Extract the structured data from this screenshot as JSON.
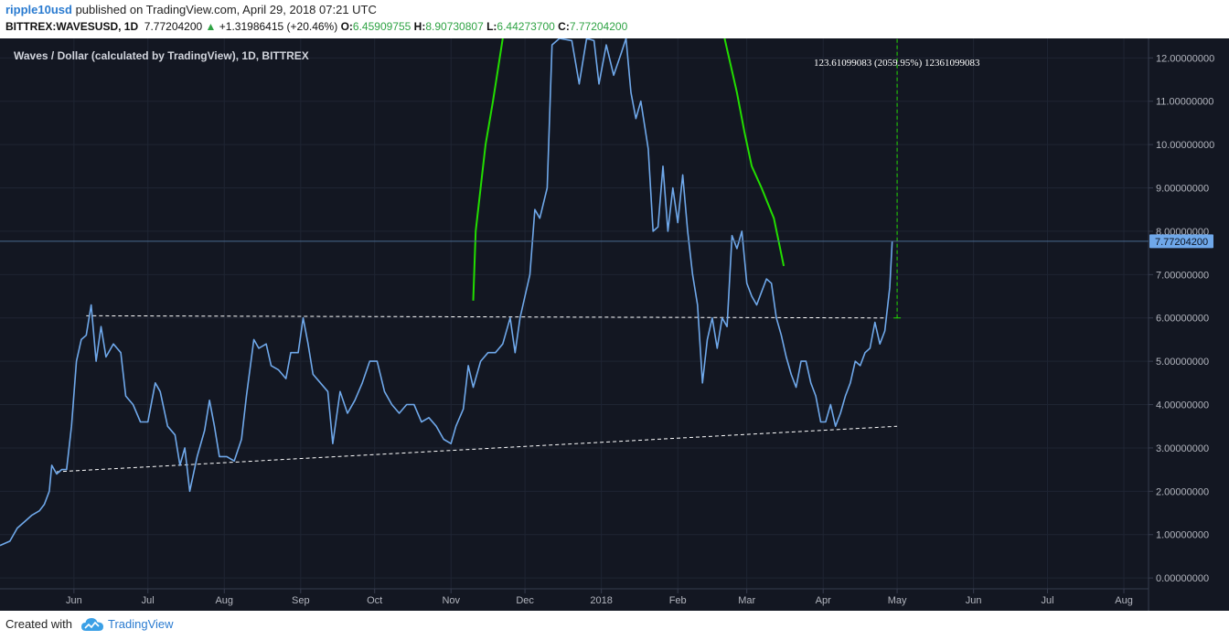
{
  "header": {
    "author": "ripple10usd",
    "published_text": " published on TradingView.com, April 29, 2018 07:21 UTC",
    "symbol": "BITTREX:WAVESUSD, 1D",
    "last": "7.77204200",
    "arrow": "▲",
    "change": "+1.31986415 (+20.46%)",
    "o_label": "O:",
    "o_value": "6.45909755",
    "h_label": "H:",
    "h_value": "8.90730807",
    "l_label": "L:",
    "l_value": "6.44273700",
    "c_label": "C:",
    "c_value": "7.77204200"
  },
  "legend": "Waves / Dollar (calculated by TradingView), 1D, BITTREX",
  "measure_label": "123.61099083 (2059.95%) 12361099083",
  "price_badge": "7.77204200",
  "footer": {
    "created": "Created with",
    "brand": "TradingView"
  },
  "colors": {
    "background": "#131722",
    "price_line": "#6fa8ea",
    "green_curve": "#22dd00",
    "grid": "#1f2533",
    "axis_text": "#b2b5be"
  },
  "chart_data": {
    "type": "line",
    "title": "Waves / Dollar (calculated by TradingView), 1D, BITTREX",
    "y_ticks": [
      "0.00000000",
      "1.00000000",
      "2.00000000",
      "3.00000000",
      "4.00000000",
      "5.00000000",
      "6.00000000",
      "7.00000000",
      "8.00000000",
      "9.00000000",
      "10.00000000",
      "11.00000000",
      "12.00000000"
    ],
    "ylim": [
      -0.25,
      12.45
    ],
    "x_ticks": [
      {
        "label": "Jun",
        "x": "2017-06-01"
      },
      {
        "label": "Jul",
        "x": "2017-07-01"
      },
      {
        "label": "Aug",
        "x": "2017-08-01"
      },
      {
        "label": "Sep",
        "x": "2017-09-01"
      },
      {
        "label": "Oct",
        "x": "2017-10-01"
      },
      {
        "label": "Nov",
        "x": "2017-11-01"
      },
      {
        "label": "Dec",
        "x": "2017-12-01"
      },
      {
        "label": "2018",
        "x": "2018-01-01"
      },
      {
        "label": "Feb",
        "x": "2018-02-01"
      },
      {
        "label": "Mar",
        "x": "2018-03-01"
      },
      {
        "label": "Apr",
        "x": "2018-04-01"
      },
      {
        "label": "May",
        "x": "2018-05-01"
      },
      {
        "label": "Jun",
        "x": "2018-06-01"
      },
      {
        "label": "Jul",
        "x": "2018-07-01"
      },
      {
        "label": "Aug",
        "x": "2018-08-01"
      }
    ],
    "xlim": [
      "2017-05-02",
      "2018-08-11"
    ],
    "grid": true,
    "series": [
      {
        "points": [
          [
            "2017-05-02",
            0.75
          ],
          [
            "2017-05-06",
            0.85
          ],
          [
            "2017-05-09",
            1.15
          ],
          [
            "2017-05-12",
            1.3
          ],
          [
            "2017-05-15",
            1.45
          ],
          [
            "2017-05-18",
            1.55
          ],
          [
            "2017-05-20",
            1.7
          ],
          [
            "2017-05-22",
            2.0
          ],
          [
            "2017-05-23",
            2.6
          ],
          [
            "2017-05-25",
            2.4
          ],
          [
            "2017-05-27",
            2.5
          ],
          [
            "2017-05-29",
            2.5
          ],
          [
            "2017-05-31",
            3.5
          ],
          [
            "2017-06-02",
            5.0
          ],
          [
            "2017-06-04",
            5.5
          ],
          [
            "2017-06-06",
            5.6
          ],
          [
            "2017-06-08",
            6.3
          ],
          [
            "2017-06-10",
            5.0
          ],
          [
            "2017-06-12",
            5.8
          ],
          [
            "2017-06-14",
            5.1
          ],
          [
            "2017-06-17",
            5.4
          ],
          [
            "2017-06-20",
            5.2
          ],
          [
            "2017-06-22",
            4.2
          ],
          [
            "2017-06-25",
            4.0
          ],
          [
            "2017-06-28",
            3.6
          ],
          [
            "2017-07-01",
            3.6
          ],
          [
            "2017-07-04",
            4.5
          ],
          [
            "2017-07-06",
            4.3
          ],
          [
            "2017-07-09",
            3.5
          ],
          [
            "2017-07-12",
            3.3
          ],
          [
            "2017-07-14",
            2.6
          ],
          [
            "2017-07-16",
            3.0
          ],
          [
            "2017-07-18",
            2.0
          ],
          [
            "2017-07-21",
            2.8
          ],
          [
            "2017-07-24",
            3.4
          ],
          [
            "2017-07-26",
            4.1
          ],
          [
            "2017-07-28",
            3.5
          ],
          [
            "2017-07-30",
            2.8
          ],
          [
            "2017-08-02",
            2.8
          ],
          [
            "2017-08-05",
            2.7
          ],
          [
            "2017-08-08",
            3.2
          ],
          [
            "2017-08-10",
            4.2
          ],
          [
            "2017-08-13",
            5.5
          ],
          [
            "2017-08-15",
            5.3
          ],
          [
            "2017-08-18",
            5.4
          ],
          [
            "2017-08-20",
            4.9
          ],
          [
            "2017-08-23",
            4.8
          ],
          [
            "2017-08-26",
            4.6
          ],
          [
            "2017-08-28",
            5.2
          ],
          [
            "2017-08-31",
            5.2
          ],
          [
            "2017-09-02",
            6.0
          ],
          [
            "2017-09-04",
            5.4
          ],
          [
            "2017-09-06",
            4.7
          ],
          [
            "2017-09-09",
            4.5
          ],
          [
            "2017-09-12",
            4.3
          ],
          [
            "2017-09-14",
            3.1
          ],
          [
            "2017-09-17",
            4.3
          ],
          [
            "2017-09-20",
            3.8
          ],
          [
            "2017-09-23",
            4.1
          ],
          [
            "2017-09-26",
            4.5
          ],
          [
            "2017-09-29",
            5.0
          ],
          [
            "2017-10-02",
            5.0
          ],
          [
            "2017-10-05",
            4.3
          ],
          [
            "2017-10-08",
            4.0
          ],
          [
            "2017-10-11",
            3.8
          ],
          [
            "2017-10-14",
            4.0
          ],
          [
            "2017-10-17",
            4.0
          ],
          [
            "2017-10-20",
            3.6
          ],
          [
            "2017-10-23",
            3.7
          ],
          [
            "2017-10-26",
            3.5
          ],
          [
            "2017-10-29",
            3.2
          ],
          [
            "2017-11-01",
            3.1
          ],
          [
            "2017-11-03",
            3.5
          ],
          [
            "2017-11-06",
            3.9
          ],
          [
            "2017-11-08",
            4.9
          ],
          [
            "2017-11-10",
            4.4
          ],
          [
            "2017-11-13",
            5.0
          ],
          [
            "2017-11-16",
            5.2
          ],
          [
            "2017-11-19",
            5.2
          ],
          [
            "2017-11-22",
            5.4
          ],
          [
            "2017-11-25",
            6.0
          ],
          [
            "2017-11-27",
            5.2
          ],
          [
            "2017-11-29",
            6.0
          ],
          [
            "2017-12-01",
            6.5
          ],
          [
            "2017-12-03",
            7.0
          ],
          [
            "2017-12-05",
            8.5
          ],
          [
            "2017-12-07",
            8.3
          ],
          [
            "2017-12-10",
            9.0
          ],
          [
            "2017-12-12",
            12.3
          ],
          [
            "2017-12-15",
            12.45
          ],
          [
            "2017-12-20",
            12.4
          ],
          [
            "2017-12-23",
            11.4
          ],
          [
            "2017-12-26",
            12.45
          ],
          [
            "2017-12-29",
            12.4
          ],
          [
            "2017-12-31",
            11.4
          ],
          [
            "2018-01-03",
            12.3
          ],
          [
            "2018-01-06",
            11.6
          ],
          [
            "2018-01-09",
            12.1
          ],
          [
            "2018-01-11",
            12.45
          ],
          [
            "2018-01-13",
            11.2
          ],
          [
            "2018-01-15",
            10.6
          ],
          [
            "2018-01-17",
            11.0
          ],
          [
            "2018-01-20",
            9.9
          ],
          [
            "2018-01-22",
            8.0
          ],
          [
            "2018-01-24",
            8.1
          ],
          [
            "2018-01-26",
            9.5
          ],
          [
            "2018-01-28",
            8.0
          ],
          [
            "2018-01-30",
            9.0
          ],
          [
            "2018-02-01",
            8.2
          ],
          [
            "2018-02-03",
            9.3
          ],
          [
            "2018-02-05",
            8.0
          ],
          [
            "2018-02-07",
            7.0
          ],
          [
            "2018-02-09",
            6.3
          ],
          [
            "2018-02-11",
            4.5
          ],
          [
            "2018-02-13",
            5.5
          ],
          [
            "2018-02-15",
            6.0
          ],
          [
            "2018-02-17",
            5.3
          ],
          [
            "2018-02-19",
            6.0
          ],
          [
            "2018-02-21",
            5.8
          ],
          [
            "2018-02-23",
            7.9
          ],
          [
            "2018-02-25",
            7.6
          ],
          [
            "2018-02-27",
            8.0
          ],
          [
            "2018-03-01",
            6.8
          ],
          [
            "2018-03-03",
            6.5
          ],
          [
            "2018-03-05",
            6.3
          ],
          [
            "2018-03-07",
            6.6
          ],
          [
            "2018-03-09",
            6.9
          ],
          [
            "2018-03-11",
            6.8
          ],
          [
            "2018-03-13",
            6.0
          ],
          [
            "2018-03-15",
            5.6
          ],
          [
            "2018-03-17",
            5.1
          ],
          [
            "2018-03-19",
            4.7
          ],
          [
            "2018-03-21",
            4.4
          ],
          [
            "2018-03-23",
            5.0
          ],
          [
            "2018-03-25",
            5.0
          ],
          [
            "2018-03-27",
            4.5
          ],
          [
            "2018-03-29",
            4.2
          ],
          [
            "2018-03-31",
            3.6
          ],
          [
            "2018-04-02",
            3.6
          ],
          [
            "2018-04-04",
            4.0
          ],
          [
            "2018-04-06",
            3.5
          ],
          [
            "2018-04-08",
            3.8
          ],
          [
            "2018-04-10",
            4.2
          ],
          [
            "2018-04-12",
            4.5
          ],
          [
            "2018-04-14",
            5.0
          ],
          [
            "2018-04-16",
            4.9
          ],
          [
            "2018-04-18",
            5.2
          ],
          [
            "2018-04-20",
            5.3
          ],
          [
            "2018-04-22",
            5.9
          ],
          [
            "2018-04-24",
            5.4
          ],
          [
            "2018-04-26",
            5.7
          ],
          [
            "2018-04-28",
            6.7
          ],
          [
            "2018-04-29",
            7.77
          ]
        ]
      }
    ],
    "green_curve_1": [
      [
        "2017-11-10",
        6.4
      ],
      [
        "2017-11-11",
        8.0
      ],
      [
        "2017-11-13",
        9.0
      ],
      [
        "2017-11-15",
        10.0
      ],
      [
        "2017-11-18",
        11.0
      ],
      [
        "2017-11-22",
        12.45
      ]
    ],
    "green_curve_2": [
      [
        "2018-02-20",
        12.45
      ],
      [
        "2018-02-25",
        11.2
      ],
      [
        "2018-02-28",
        10.3
      ],
      [
        "2018-03-03",
        9.5
      ],
      [
        "2018-03-07",
        9.0
      ],
      [
        "2018-03-12",
        8.3
      ],
      [
        "2018-03-16",
        7.2
      ]
    ],
    "resistance_line": [
      [
        "2017-06-06",
        6.05
      ],
      [
        "2018-04-26",
        6.0
      ]
    ],
    "support_line": [
      [
        "2017-05-25",
        2.45
      ],
      [
        "2018-05-01",
        3.5
      ]
    ],
    "measure_line_x": "2018-05-01",
    "measure_line_y": [
      6.0,
      12.45
    ],
    "last_price": 7.77
  }
}
